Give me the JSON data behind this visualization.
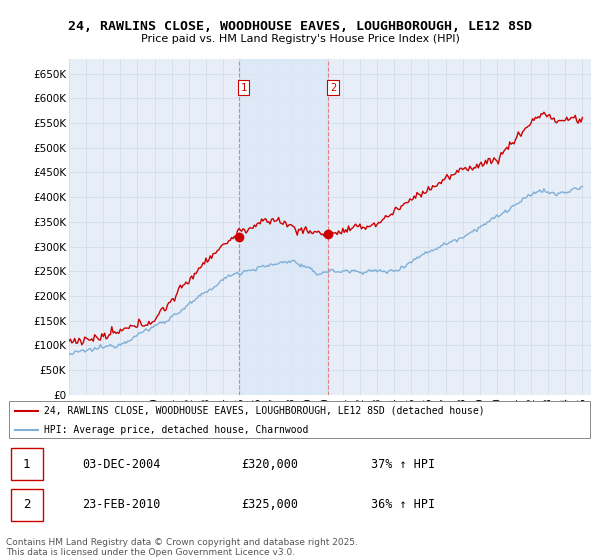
{
  "title_line1": "24, RAWLINS CLOSE, WOODHOUSE EAVES, LOUGHBOROUGH, LE12 8SD",
  "title_line2": "Price paid vs. HM Land Registry's House Price Index (HPI)",
  "background_color": "#ffffff",
  "plot_bg_color": "#e8eef7",
  "grid_color": "#d0d8e8",
  "legend_label_red": "24, RAWLINS CLOSE, WOODHOUSE EAVES, LOUGHBOROUGH, LE12 8SD (detached house)",
  "legend_label_blue": "HPI: Average price, detached house, Charnwood",
  "transaction1_date": "03-DEC-2004",
  "transaction1_price": "£320,000",
  "transaction1_hpi": "37% ↑ HPI",
  "transaction2_date": "23-FEB-2010",
  "transaction2_price": "£325,000",
  "transaction2_hpi": "36% ↑ HPI",
  "vline1_x": 2004.92,
  "vline2_x": 2010.14,
  "marker1_y": 320000,
  "marker2_y": 325000,
  "footer_text": "Contains HM Land Registry data © Crown copyright and database right 2025.\nThis data is licensed under the Open Government Licence v3.0.",
  "ylim": [
    0,
    680000
  ],
  "yticks": [
    0,
    50000,
    100000,
    150000,
    200000,
    250000,
    300000,
    350000,
    400000,
    450000,
    500000,
    550000,
    600000,
    650000
  ],
  "xlim_start": 1995.0,
  "xlim_end": 2025.5,
  "red_color": "#cc0000",
  "blue_color": "#7fb0d8",
  "vline_color": "#e08080"
}
